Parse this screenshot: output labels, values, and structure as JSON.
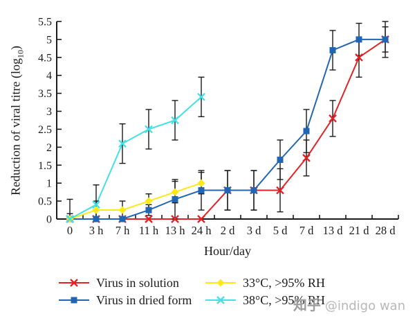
{
  "watermark": {
    "brand": "知乎",
    "handle": "@indigo wan"
  },
  "chart_data": {
    "type": "line",
    "title": "",
    "xlabel": "Hour/day",
    "ylabel": {
      "pre": "Reduction of viral titre (log",
      "sub": "10",
      "post": ")"
    },
    "categories": [
      "0",
      "3 h",
      "7 h",
      "11 h",
      "13 h",
      "24 h",
      "2 d",
      "3 d",
      "5 d",
      "7 d",
      "13 d",
      "21 d",
      "28 d"
    ],
    "ylim": [
      0,
      5.5
    ],
    "yticks": [
      "0",
      "0.5",
      "1",
      "1.5",
      "2",
      "2.5",
      "3",
      "3.5",
      "4",
      "4.5",
      "5",
      "5.5"
    ],
    "grid": false,
    "legend_position": "bottom",
    "legend_columns": 2,
    "axis_color": "#1a1a1a",
    "error_bar_color": "#1a1a1a",
    "series": [
      {
        "name": "Virus in solution",
        "color": "#e32226",
        "marker": "x",
        "values": [
          0,
          0,
          0,
          0,
          0,
          0,
          0.8,
          0.8,
          0.8,
          1.7,
          2.8,
          4.5,
          5.0
        ],
        "errors": [
          0,
          0,
          0,
          0,
          0,
          0,
          0.55,
          0.55,
          0.6,
          0.5,
          0.5,
          0.55,
          0.5
        ]
      },
      {
        "name": "Virus in dried form",
        "color": "#2166b2",
        "marker": "square",
        "values": [
          0,
          0,
          0,
          0.25,
          0.55,
          0.8,
          0.8,
          0.8,
          1.65,
          2.45,
          4.7,
          5.0,
          5.0
        ],
        "errors": [
          0,
          0,
          0,
          0.15,
          0.55,
          0.55,
          0.55,
          0.55,
          0.55,
          0.6,
          0.55,
          0.45,
          0.35
        ]
      },
      {
        "name": "33°C, >95% RH",
        "color": "#ffe817",
        "marker": "diamond",
        "values": [
          0,
          0.25,
          0.25,
          0.5,
          0.75,
          1.0,
          null,
          null,
          null,
          null,
          null,
          null,
          null
        ],
        "errors": [
          0.15,
          0.25,
          0.25,
          0.2,
          0.3,
          0.3,
          null,
          null,
          null,
          null,
          null,
          null,
          null
        ]
      },
      {
        "name": "38°C, >95% RH",
        "color": "#43e0e4",
        "marker": "x",
        "values": [
          0,
          0.4,
          2.1,
          2.5,
          2.75,
          3.4,
          null,
          null,
          null,
          null,
          null,
          null,
          null
        ],
        "errors": [
          0.55,
          0.55,
          0.55,
          0.55,
          0.55,
          0.55,
          null,
          null,
          null,
          null,
          null,
          null,
          null
        ]
      }
    ]
  }
}
